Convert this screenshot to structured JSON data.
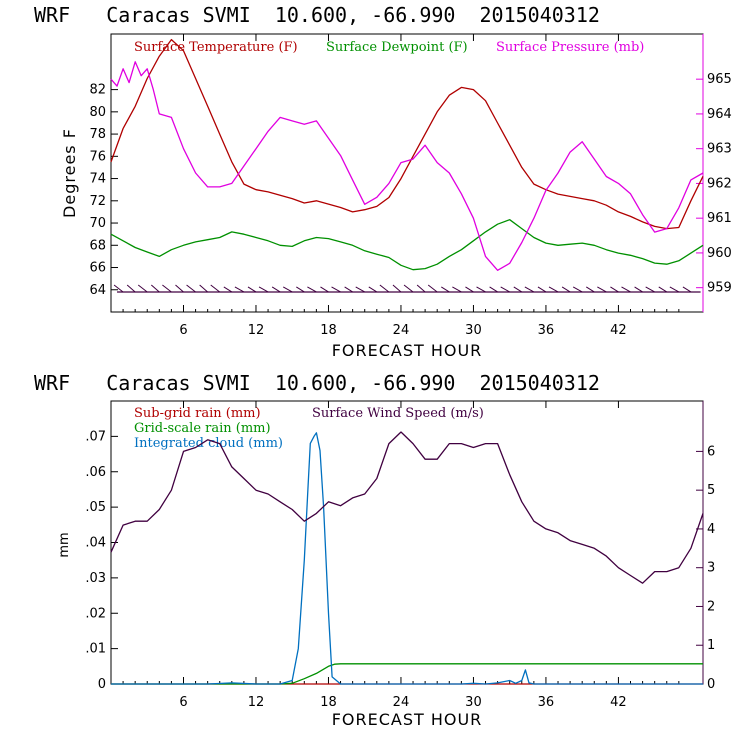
{
  "chart_data": [
    {
      "type": "line",
      "title": "WRF   Caracas SVMI  10.600, -66.990  2015040312",
      "xlabel": "FORECAST HOUR",
      "ylabel": "Degrees F",
      "xlim": [
        0,
        49
      ],
      "ylim": [
        62,
        87
      ],
      "y2lim": [
        958.3,
        966.3
      ],
      "xticks": [
        "6",
        "12",
        "18",
        "24",
        "30",
        "36",
        "42"
      ],
      "yticks": [
        "64",
        "66",
        "68",
        "70",
        "72",
        "74",
        "76",
        "78",
        "80",
        "82"
      ],
      "y2ticks": [
        "959",
        "960",
        "961",
        "962",
        "963",
        "964",
        "965"
      ],
      "series": [
        {
          "name": "Surface Temperature (F)",
          "color": "#b00000",
          "axis": "left",
          "x": [
            0,
            1,
            2,
            3,
            4,
            5,
            6,
            7,
            8,
            9,
            10,
            11,
            12,
            13,
            14,
            15,
            16,
            17,
            18,
            19,
            20,
            21,
            22,
            23,
            24,
            25,
            26,
            27,
            28,
            29,
            30,
            31,
            32,
            33,
            34,
            35,
            36,
            37,
            38,
            39,
            40,
            41,
            42,
            43,
            44,
            45,
            46,
            47,
            48,
            49
          ],
          "values": [
            75.5,
            78.5,
            80.5,
            83,
            85,
            86.5,
            85.5,
            83,
            80.5,
            78,
            75.5,
            73.5,
            73,
            72.8,
            72.5,
            72.2,
            71.8,
            72,
            71.7,
            71.4,
            71,
            71.2,
            71.5,
            72.3,
            74,
            76,
            78,
            80,
            81.5,
            82.2,
            82,
            81,
            79,
            77,
            75,
            73.5,
            73,
            72.6,
            72.4,
            72.2,
            72,
            71.6,
            71,
            70.6,
            70.1,
            69.7,
            69.5,
            69.6,
            72,
            74.2
          ]
        },
        {
          "name": "Surface Dewpoint (F)",
          "color": "#009000",
          "axis": "left",
          "x": [
            0,
            1,
            2,
            3,
            4,
            5,
            6,
            7,
            8,
            9,
            10,
            11,
            12,
            13,
            14,
            15,
            16,
            17,
            18,
            19,
            20,
            21,
            22,
            23,
            24,
            25,
            26,
            27,
            28,
            29,
            30,
            31,
            32,
            33,
            34,
            35,
            36,
            37,
            38,
            39,
            40,
            41,
            42,
            43,
            44,
            45,
            46,
            47,
            48,
            49
          ],
          "values": [
            69,
            68.4,
            67.8,
            67.4,
            67,
            67.6,
            68,
            68.3,
            68.5,
            68.7,
            69.2,
            69,
            68.7,
            68.4,
            68,
            67.9,
            68.4,
            68.7,
            68.6,
            68.3,
            68,
            67.5,
            67.2,
            66.9,
            66.2,
            65.8,
            65.9,
            66.3,
            67,
            67.6,
            68.4,
            69.2,
            69.9,
            70.3,
            69.5,
            68.7,
            68.2,
            68,
            68.1,
            68.2,
            68,
            67.6,
            67.3,
            67.1,
            66.8,
            66.4,
            66.3,
            66.6,
            67.3,
            68
          ]
        },
        {
          "name": "Surface Pressure (mb)",
          "color": "#e000e0",
          "axis": "right",
          "x": [
            0,
            0.5,
            1,
            1.5,
            2,
            2.5,
            3,
            3.5,
            4,
            5,
            6,
            7,
            8,
            9,
            10,
            11,
            12,
            13,
            14,
            15,
            16,
            17,
            18,
            19,
            20,
            21,
            22,
            23,
            24,
            25,
            26,
            27,
            28,
            29,
            30,
            31,
            32,
            33,
            34,
            35,
            36,
            37,
            38,
            39,
            40,
            41,
            42,
            43,
            44,
            45,
            46,
            47,
            48,
            49
          ],
          "values": [
            965,
            964.8,
            965.3,
            964.9,
            965.5,
            965.1,
            965.3,
            964.7,
            964,
            963.9,
            963,
            962.3,
            961.9,
            961.9,
            962,
            962.5,
            963,
            963.5,
            963.9,
            963.8,
            963.7,
            963.8,
            963.3,
            962.8,
            962.1,
            961.4,
            961.6,
            962,
            962.6,
            962.7,
            963.1,
            962.6,
            962.3,
            961.7,
            961,
            959.9,
            959.5,
            959.7,
            960.3,
            961,
            961.8,
            962.3,
            962.9,
            963.2,
            962.7,
            962.2,
            962,
            961.7,
            961.1,
            960.6,
            960.7,
            961.3,
            962.1,
            962.3
          ]
        }
      ],
      "wind_barbs": "wind barbs near 64 F level"
    },
    {
      "type": "line",
      "title": "WRF   Caracas SVMI  10.600, -66.990  2015040312",
      "xlabel": "FORECAST HOUR",
      "ylabel": "mm",
      "xlim": [
        0,
        49
      ],
      "ylim": [
        0,
        0.08
      ],
      "y2lim": [
        0,
        7.3
      ],
      "xticks": [
        "6",
        "12",
        "18",
        "24",
        "30",
        "36",
        "42"
      ],
      "yticks": [
        "0",
        ".01",
        ".02",
        ".03",
        ".04",
        ".05",
        ".06",
        ".07"
      ],
      "y2ticks": [
        "0",
        "1",
        "2",
        "3",
        "4",
        "5",
        "6"
      ],
      "series": [
        {
          "name": "Sub-grid rain (mm)",
          "color": "#b00000",
          "axis": "left",
          "x": [
            0,
            49
          ],
          "values": [
            0,
            0
          ]
        },
        {
          "name": "Grid-scale rain (mm)",
          "color": "#009000",
          "axis": "left",
          "x": [
            0,
            14,
            15,
            16,
            17,
            18,
            18.5,
            19,
            20,
            49
          ],
          "values": [
            0,
            0,
            0.0002,
            0.0015,
            0.003,
            0.005,
            0.0056,
            0.0057,
            0.0057,
            0.0057
          ]
        },
        {
          "name": "Integrated cloud (mm)",
          "color": "#0070c0",
          "axis": "left",
          "x": [
            0,
            8,
            10,
            12,
            14,
            15,
            15.5,
            16,
            16.3,
            16.5,
            16.8,
            17,
            17.3,
            17.6,
            18,
            18.3,
            19,
            29,
            30,
            31,
            32,
            33,
            33.5,
            34,
            34.3,
            34.6,
            35,
            49
          ],
          "values": [
            0,
            0,
            0.0003,
            0,
            0,
            0.001,
            0.01,
            0.035,
            0.055,
            0.068,
            0.07,
            0.071,
            0.066,
            0.05,
            0.02,
            0.002,
            0,
            0,
            0.0002,
            0,
            0.0003,
            0.001,
            0.0002,
            0.001,
            0.004,
            0.0003,
            0,
            0
          ]
        },
        {
          "name": "Surface Wind Speed (m/s)",
          "color": "#400040",
          "axis": "right",
          "x": [
            0,
            1,
            2,
            3,
            4,
            5,
            6,
            7,
            8,
            9,
            10,
            11,
            12,
            13,
            14,
            15,
            16,
            17,
            18,
            19,
            20,
            21,
            22,
            23,
            24,
            25,
            26,
            27,
            28,
            29,
            30,
            31,
            32,
            33,
            34,
            35,
            36,
            37,
            38,
            39,
            40,
            41,
            42,
            43,
            44,
            45,
            46,
            47,
            48,
            49
          ],
          "values": [
            3.4,
            4.1,
            4.2,
            4.2,
            4.5,
            5,
            6,
            6.1,
            6.3,
            6.2,
            5.6,
            5.3,
            5.0,
            4.9,
            4.7,
            4.5,
            4.2,
            4.4,
            4.7,
            4.6,
            4.8,
            4.9,
            5.3,
            6.2,
            6.5,
            6.2,
            5.8,
            5.8,
            6.2,
            6.2,
            6.1,
            6.2,
            6.2,
            5.4,
            4.7,
            4.2,
            4.0,
            3.9,
            3.7,
            3.6,
            3.5,
            3.3,
            3.0,
            2.8,
            2.6,
            2.9,
            2.9,
            3.0,
            3.5,
            4.4
          ]
        }
      ]
    }
  ]
}
